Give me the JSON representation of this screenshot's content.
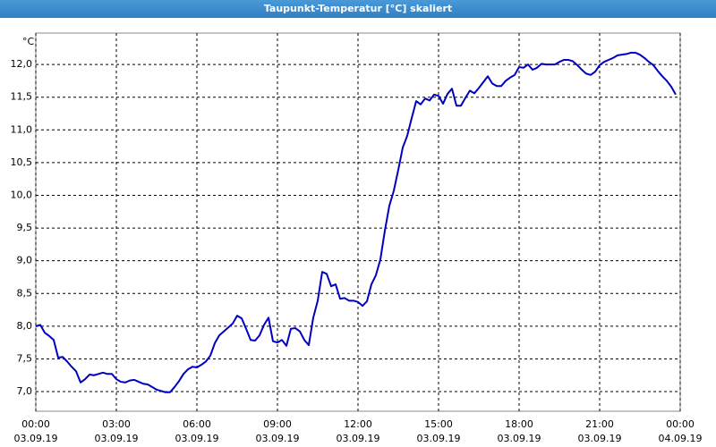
{
  "chart_data": {
    "type": "line",
    "title": "Taupunkt-Temperatur [°C] skaliert",
    "y_unit": "°C",
    "x": [
      0,
      10,
      20,
      30,
      40,
      50,
      60,
      70,
      80,
      90,
      100,
      110,
      120,
      130,
      140,
      150,
      160,
      170,
      180,
      190,
      200,
      210,
      220,
      230,
      240,
      250,
      260,
      270,
      280,
      290,
      300,
      310,
      320,
      330,
      340,
      350,
      360,
      370,
      380,
      390,
      400,
      410,
      420,
      430,
      440,
      450,
      460,
      470,
      480,
      490,
      500,
      510,
      520,
      530,
      540,
      550,
      560,
      570,
      580,
      590,
      600,
      610,
      620,
      630,
      640,
      650,
      660,
      670,
      680,
      690,
      700,
      710,
      720,
      730,
      740,
      750,
      760,
      770,
      780,
      790,
      800,
      810,
      820,
      830,
      840,
      850,
      860,
      870,
      880,
      890,
      900,
      910,
      920,
      930,
      940,
      950,
      960,
      970,
      980,
      990,
      1000,
      1010,
      1020,
      1030,
      1040,
      1050,
      1060,
      1070,
      1080,
      1090,
      1100,
      1110,
      1120,
      1130,
      1140,
      1150,
      1160,
      1170,
      1180,
      1190,
      1200,
      1210,
      1220,
      1230,
      1240,
      1250,
      1260,
      1270,
      1280,
      1290,
      1300,
      1310,
      1320,
      1330,
      1340,
      1350,
      1360,
      1370,
      1380,
      1390,
      1400,
      1410,
      1420,
      1430
    ],
    "series": [
      {
        "color": "#0000c0",
        "values": [
          8.0,
          8.02,
          7.9,
          7.85,
          7.79,
          7.52,
          7.53,
          7.46,
          7.38,
          7.31,
          7.14,
          7.19,
          7.26,
          7.25,
          7.27,
          7.29,
          7.27,
          7.27,
          7.19,
          7.15,
          7.14,
          7.17,
          7.18,
          7.15,
          7.12,
          7.11,
          7.07,
          7.03,
          7.01,
          6.99,
          6.99,
          7.07,
          7.16,
          7.27,
          7.34,
          7.38,
          7.37,
          7.41,
          7.46,
          7.55,
          7.74,
          7.86,
          7.92,
          7.98,
          8.04,
          8.16,
          8.12,
          7.96,
          7.79,
          7.78,
          7.86,
          8.02,
          8.13,
          7.77,
          7.75,
          7.79,
          7.7,
          7.96,
          7.97,
          7.92,
          7.79,
          7.71,
          8.13,
          8.39,
          8.83,
          8.8,
          8.61,
          8.64,
          8.42,
          8.43,
          8.39,
          8.39,
          8.37,
          8.31,
          8.38,
          8.64,
          8.78,
          9.02,
          9.46,
          9.84,
          10.07,
          10.39,
          10.73,
          10.91,
          11.18,
          11.44,
          11.39,
          11.48,
          11.45,
          11.54,
          11.52,
          11.4,
          11.55,
          11.63,
          11.37,
          11.37,
          11.49,
          11.6,
          11.56,
          11.64,
          11.73,
          11.82,
          11.71,
          11.67,
          11.67,
          11.75,
          11.8,
          11.84,
          11.96,
          11.95,
          12.0,
          11.92,
          11.95,
          12.01,
          12.0,
          12.0,
          12.0,
          12.04,
          12.07,
          12.07,
          12.05,
          11.99,
          11.92,
          11.86,
          11.84,
          11.89,
          11.99,
          12.04,
          12.07,
          12.1,
          12.14,
          12.15,
          12.16,
          12.18,
          12.18,
          12.15,
          12.1,
          12.04,
          11.99,
          11.9,
          11.82,
          11.75,
          11.66,
          11.54
        ]
      }
    ],
    "xlim": [
      0,
      1440
    ],
    "xticks": [
      {
        "value": 0,
        "label": "00:00"
      },
      {
        "value": 180,
        "label": "03:00"
      },
      {
        "value": 360,
        "label": "06:00"
      },
      {
        "value": 540,
        "label": "09:00"
      },
      {
        "value": 720,
        "label": "12:00"
      },
      {
        "value": 900,
        "label": "15:00"
      },
      {
        "value": 1080,
        "label": "18:00"
      },
      {
        "value": 1260,
        "label": "21:00"
      },
      {
        "value": 1440,
        "label": "00:00"
      }
    ],
    "xtick_dates": [
      "03.09.19",
      "03.09.19",
      "03.09.19",
      "03.09.19",
      "03.09.19",
      "03.09.19",
      "03.09.19",
      "03.09.19",
      "04.09.19"
    ],
    "ylim": [
      6.7,
      12.48
    ],
    "yticks": [
      {
        "value": 7,
        "label": "7,0"
      },
      {
        "value": 7.5,
        "label": "7,5"
      },
      {
        "value": 8,
        "label": "8,0"
      },
      {
        "value": 8.5,
        "label": "8,5"
      },
      {
        "value": 9,
        "label": "9,0"
      },
      {
        "value": 9.5,
        "label": "9,5"
      },
      {
        "value": 10,
        "label": "10,0"
      },
      {
        "value": 10.5,
        "label": "10,5"
      },
      {
        "value": 11,
        "label": "11,0"
      },
      {
        "value": 11.5,
        "label": "11,5"
      },
      {
        "value": 12,
        "label": "12,0"
      }
    ],
    "grid": true
  }
}
